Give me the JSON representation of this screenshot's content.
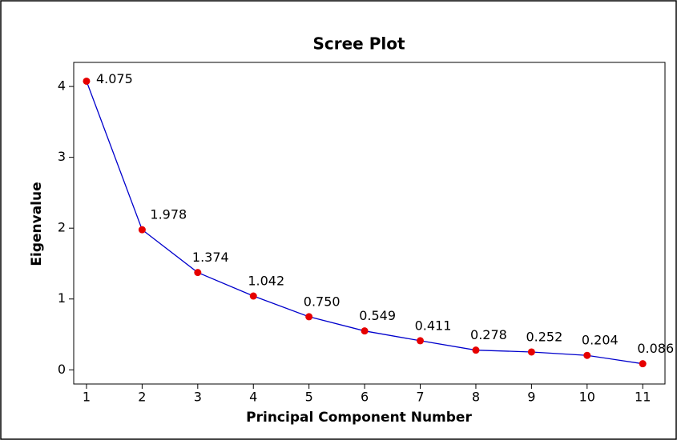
{
  "chart_data": {
    "type": "line",
    "title": "Scree Plot",
    "x_label": "Principal Component Number",
    "y_label": "Eigenvalue",
    "x": [
      1,
      2,
      3,
      4,
      5,
      6,
      7,
      8,
      9,
      10,
      11
    ],
    "series": [
      {
        "name": "Eigenvalue",
        "color": "#0000cc",
        "marker_color": "#e60000",
        "values": [
          4.075,
          1.978,
          1.374,
          1.042,
          0.75,
          0.549,
          0.411,
          0.278,
          0.252,
          0.204,
          0.086
        ],
        "value_labels": [
          "4.075",
          "1.978",
          "1.374",
          "1.042",
          "0.750",
          "0.549",
          "0.411",
          "0.278",
          "0.252",
          "0.204",
          "0.086"
        ]
      }
    ],
    "xlim": [
      0.77,
      11.4
    ],
    "xticks": [
      1,
      2,
      3,
      4,
      5,
      6,
      7,
      8,
      9,
      10,
      11
    ],
    "ylim": [
      -0.2,
      4.34
    ],
    "yticks": [
      0,
      1,
      2,
      3,
      4
    ],
    "grid": false
  }
}
